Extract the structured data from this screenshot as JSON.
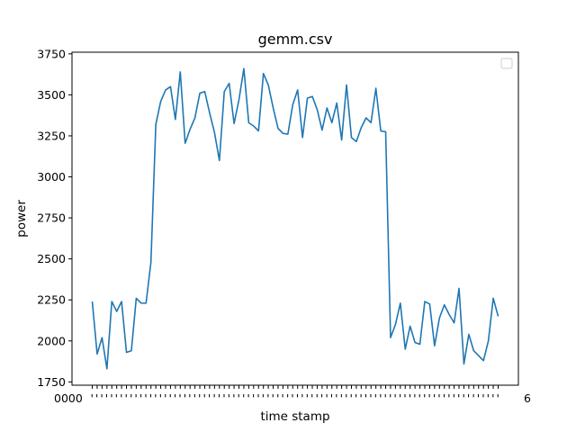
{
  "chart_data": {
    "type": "line",
    "title": "gemm.csv",
    "xlabel": "time stamp",
    "ylabel": "power",
    "ylim": [
      1730,
      3760
    ],
    "yticks": [
      1750,
      2000,
      2250,
      2500,
      2750,
      3000,
      3250,
      3500,
      3750
    ],
    "x_tick_labels_visible": [
      "0000",
      "6"
    ],
    "legend": {
      "position": "upper right",
      "entries": []
    },
    "grid": false,
    "series": [
      {
        "color": "#1f77b4",
        "values": [
          2240,
          1920,
          2020,
          1830,
          2240,
          2180,
          2240,
          1930,
          1940,
          2260,
          2230,
          2230,
          2480,
          3320,
          3460,
          3530,
          3550,
          3350,
          3640,
          3205,
          3290,
          3360,
          3510,
          3520,
          3390,
          3270,
          3100,
          3520,
          3570,
          3325,
          3470,
          3660,
          3330,
          3310,
          3280,
          3630,
          3560,
          3420,
          3295,
          3265,
          3260,
          3440,
          3530,
          3240,
          3480,
          3490,
          3410,
          3285,
          3420,
          3330,
          3450,
          3225,
          3560,
          3240,
          3215,
          3300,
          3360,
          3330,
          3540,
          3280,
          3275,
          2020,
          2100,
          2230,
          1950,
          2090,
          1990,
          1980,
          2240,
          2225,
          1970,
          2140,
          2220,
          2160,
          2110,
          2320,
          1860,
          2040,
          1940,
          1910,
          1880,
          2000,
          2260,
          2150
        ]
      }
    ]
  }
}
